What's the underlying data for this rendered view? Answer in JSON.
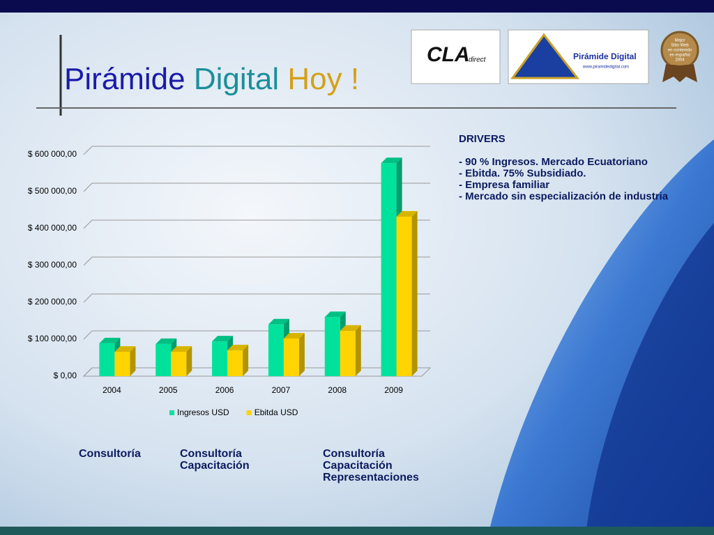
{
  "slide": {
    "title_parts": [
      "Pirámide",
      "Digital",
      "Hoy !"
    ],
    "logos": {
      "cla": "CLA",
      "cla_sub": "direct",
      "pd_name": "Pirámide Digital",
      "pd_url": "www.piramidedigital.com",
      "badge": [
        "Mejor",
        "Sitio Web",
        "en contenido",
        "en español",
        "2004"
      ]
    },
    "drivers": {
      "heading": "DRIVERS",
      "items": [
        "- 90 % Ingresos. Mercado Ecuatoriano",
        "- Ebitda. 75% Subsidiado.",
        "- Empresa familiar",
        "- Mercado sin especialización de industria"
      ]
    },
    "stages": [
      [
        "Consultoría"
      ],
      [
        "Consultoría",
        "Capacitación"
      ],
      [
        "Consultoría",
        "Capacitación",
        "Representaciones"
      ]
    ]
  },
  "chart_data": {
    "type": "bar",
    "categories": [
      "2004",
      "2005",
      "2006",
      "2007",
      "2008",
      "2009"
    ],
    "series": [
      {
        "name": "Ingresos USD",
        "color": "#00e29c",
        "values": [
          89000,
          87000,
          94000,
          140000,
          160000,
          577000
        ]
      },
      {
        "name": "Ebitda USD",
        "color": "#ffd400",
        "values": [
          66000,
          66000,
          70000,
          102000,
          123000,
          432000
        ]
      }
    ],
    "ylim": [
      0,
      600000
    ],
    "yticks": [
      {
        "value": 0,
        "label": "$ 0,00"
      },
      {
        "value": 100000,
        "label": "$ 100 000,00"
      },
      {
        "value": 200000,
        "label": "$ 200 000,00"
      },
      {
        "value": 300000,
        "label": "$ 300 000,00"
      },
      {
        "value": 400000,
        "label": "$ 400 000,00"
      },
      {
        "value": 500000,
        "label": "$ 500 000,00"
      },
      {
        "value": 600000,
        "label": "$ 600 000,00"
      }
    ],
    "grid": true,
    "legend": "bottom"
  }
}
